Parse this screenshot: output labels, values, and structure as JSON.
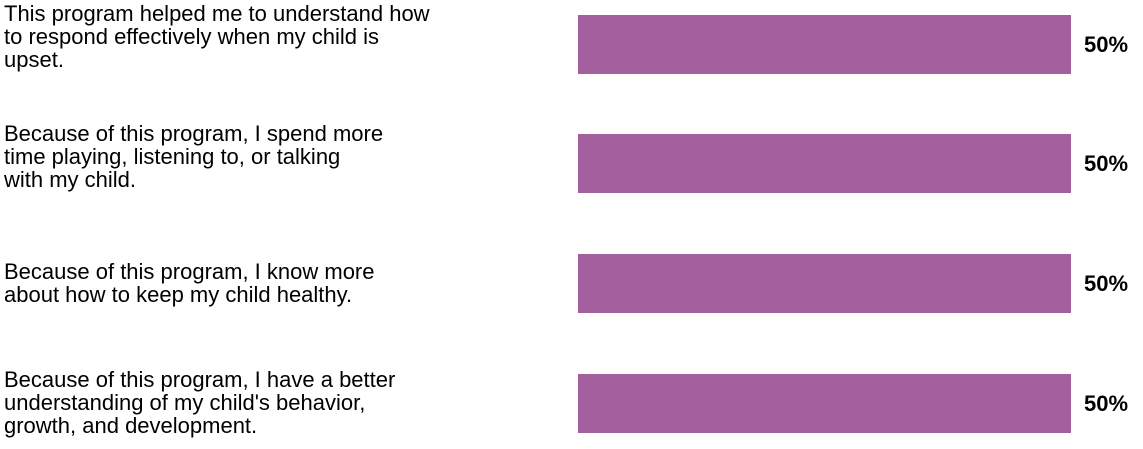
{
  "chart_data": {
    "type": "bar",
    "orientation": "horizontal",
    "categories": [
      "This program helped me to understand how\nto respond effectively when my child is\nupset.",
      "Because of this program, I spend more\ntime playing, listening to, or talking\nwith my child.",
      "Because of this program, I know more\nabout how to keep my child healthy.",
      "Because of this program, I have a better\nunderstanding of my child's behavior,\ngrowth, and development."
    ],
    "values": [
      50,
      50,
      50,
      50
    ],
    "value_labels": [
      "50%",
      "50%",
      "50%",
      "50%"
    ],
    "xlim": [
      0,
      100
    ],
    "bar_color": "#a4609e",
    "title": "",
    "xlabel": "",
    "ylabel": "",
    "grid": false
  }
}
